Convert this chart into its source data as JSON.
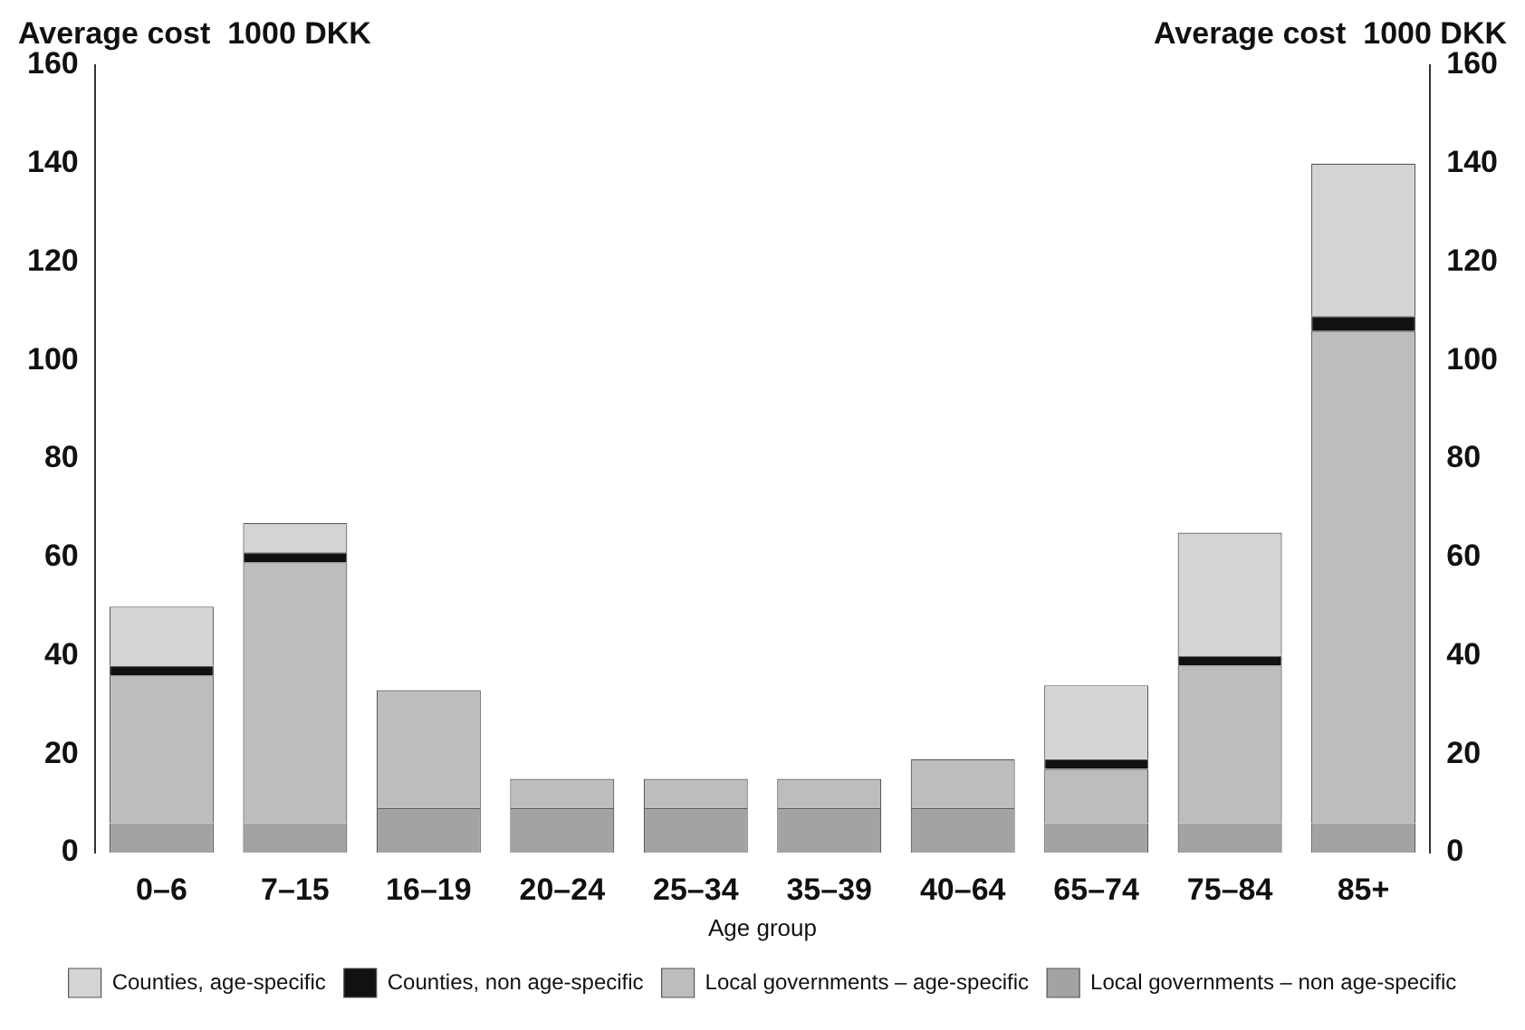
{
  "chart_data": {
    "type": "bar",
    "stacked": true,
    "ylabel": "Average cost  1000 DKK",
    "y2label": "Average cost  1000 DKK",
    "xlabel": "Age group",
    "categories": [
      "0–6",
      "7–15",
      "16–19",
      "20–24",
      "25–34",
      "35–39",
      "40–64",
      "65–74",
      "75–84",
      "85+"
    ],
    "series": [
      {
        "name": "Local governments – non age-specific",
        "color": "#a3a3a3",
        "values": [
          6,
          6,
          9,
          9,
          9,
          9,
          9,
          6,
          6,
          6
        ]
      },
      {
        "name": "Local governments – age-specific",
        "color": "#bdbdbd",
        "values": [
          30,
          53,
          24,
          6,
          6,
          6,
          10,
          11,
          32,
          100
        ]
      },
      {
        "name": "Counties, non age-specific",
        "color": "#111111",
        "values": [
          2,
          2,
          0,
          0,
          0,
          0,
          0,
          2,
          2,
          3
        ]
      },
      {
        "name": "Counties, age-specific",
        "color": "#d4d4d4",
        "values": [
          12,
          6,
          0,
          0,
          0,
          0,
          0,
          15,
          25,
          31
        ]
      }
    ],
    "ylim": [
      0,
      160
    ],
    "yticks": [
      0,
      20,
      40,
      60,
      80,
      100,
      120,
      140,
      160
    ],
    "y2lim": [
      0,
      160
    ],
    "y2ticks": [
      0,
      20,
      40,
      60,
      80,
      100,
      120,
      140,
      160
    ],
    "grid": false,
    "legend": "bottom"
  }
}
